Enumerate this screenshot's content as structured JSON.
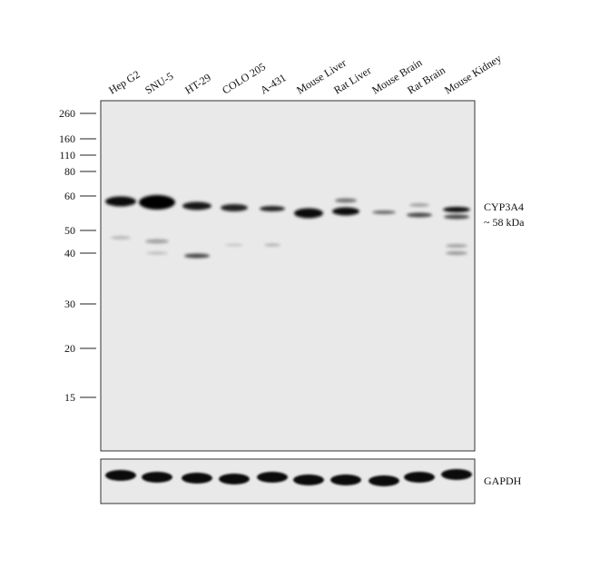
{
  "lanes": [
    "Hep G2",
    "SNU-5",
    "HT-29",
    "COLO 205",
    "A-431",
    "Mouse Liver",
    "Rat Liver",
    "Mouse Brain",
    "Rat Brain",
    "Mouse Kidney"
  ],
  "markers": [
    260,
    160,
    110,
    80,
    60,
    50,
    40,
    30,
    20,
    15
  ],
  "target": {
    "name": "CYP3A4",
    "size": "~ 58 kDa"
  },
  "loading_control": "GAPDH"
}
